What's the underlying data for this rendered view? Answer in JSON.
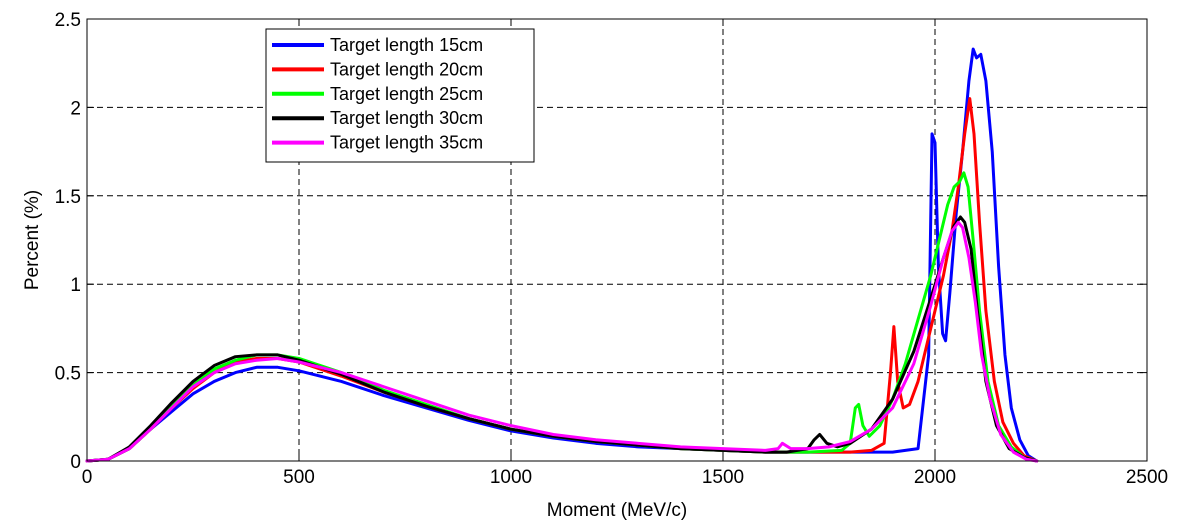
{
  "chart_data": {
    "type": "line",
    "title": "",
    "xlabel": "Moment (MeV/c)",
    "ylabel": "Percent (%)",
    "xlim": [
      0,
      2500
    ],
    "ylim": [
      0,
      2.5
    ],
    "x_ticks": [
      0,
      500,
      1000,
      1500,
      2000,
      2500
    ],
    "y_ticks": [
      0,
      0.5,
      1,
      1.5,
      2,
      2.5
    ],
    "x_tick_labels": [
      "0",
      "500",
      "1000",
      "1500",
      "2000",
      "2500"
    ],
    "y_tick_labels": [
      "0",
      "0.5",
      "1",
      "1.5",
      "2",
      "2.5"
    ],
    "grid": true,
    "legend_position": "top-left",
    "series": [
      {
        "name": "Target length 15cm",
        "color": "#0000ff",
        "points": [
          [
            0,
            0
          ],
          [
            50,
            0.01
          ],
          [
            100,
            0.07
          ],
          [
            150,
            0.18
          ],
          [
            200,
            0.28
          ],
          [
            250,
            0.38
          ],
          [
            300,
            0.45
          ],
          [
            350,
            0.5
          ],
          [
            400,
            0.53
          ],
          [
            450,
            0.53
          ],
          [
            500,
            0.51
          ],
          [
            600,
            0.45
          ],
          [
            700,
            0.37
          ],
          [
            800,
            0.3
          ],
          [
            900,
            0.23
          ],
          [
            1000,
            0.17
          ],
          [
            1100,
            0.13
          ],
          [
            1200,
            0.1
          ],
          [
            1300,
            0.08
          ],
          [
            1400,
            0.07
          ],
          [
            1500,
            0.06
          ],
          [
            1600,
            0.05
          ],
          [
            1700,
            0.05
          ],
          [
            1800,
            0.05
          ],
          [
            1900,
            0.05
          ],
          [
            1960,
            0.07
          ],
          [
            1985,
            0.6
          ],
          [
            1993,
            1.85
          ],
          [
            2000,
            1.8
          ],
          [
            2008,
            1.1
          ],
          [
            2018,
            0.72
          ],
          [
            2025,
            0.68
          ],
          [
            2035,
            0.95
          ],
          [
            2050,
            1.4
          ],
          [
            2065,
            1.75
          ],
          [
            2080,
            2.15
          ],
          [
            2090,
            2.33
          ],
          [
            2098,
            2.28
          ],
          [
            2108,
            2.3
          ],
          [
            2120,
            2.15
          ],
          [
            2135,
            1.75
          ],
          [
            2150,
            1.1
          ],
          [
            2165,
            0.6
          ],
          [
            2180,
            0.3
          ],
          [
            2200,
            0.12
          ],
          [
            2220,
            0.03
          ],
          [
            2240,
            0
          ]
        ]
      },
      {
        "name": "Target length 20cm",
        "color": "#ff0000",
        "points": [
          [
            0,
            0
          ],
          [
            50,
            0.01
          ],
          [
            100,
            0.07
          ],
          [
            150,
            0.18
          ],
          [
            200,
            0.3
          ],
          [
            250,
            0.41
          ],
          [
            300,
            0.5
          ],
          [
            350,
            0.56
          ],
          [
            400,
            0.58
          ],
          [
            450,
            0.58
          ],
          [
            500,
            0.56
          ],
          [
            600,
            0.48
          ],
          [
            700,
            0.39
          ],
          [
            800,
            0.31
          ],
          [
            900,
            0.24
          ],
          [
            1000,
            0.18
          ],
          [
            1100,
            0.14
          ],
          [
            1200,
            0.11
          ],
          [
            1300,
            0.09
          ],
          [
            1400,
            0.07
          ],
          [
            1500,
            0.06
          ],
          [
            1600,
            0.05
          ],
          [
            1700,
            0.05
          ],
          [
            1800,
            0.05
          ],
          [
            1850,
            0.06
          ],
          [
            1880,
            0.1
          ],
          [
            1895,
            0.5
          ],
          [
            1903,
            0.76
          ],
          [
            1912,
            0.45
          ],
          [
            1925,
            0.3
          ],
          [
            1940,
            0.32
          ],
          [
            1960,
            0.45
          ],
          [
            1980,
            0.65
          ],
          [
            2000,
            0.85
          ],
          [
            2020,
            1.05
          ],
          [
            2040,
            1.3
          ],
          [
            2055,
            1.55
          ],
          [
            2070,
            1.85
          ],
          [
            2082,
            2.05
          ],
          [
            2092,
            1.85
          ],
          [
            2105,
            1.35
          ],
          [
            2120,
            0.85
          ],
          [
            2140,
            0.45
          ],
          [
            2160,
            0.22
          ],
          [
            2185,
            0.1
          ],
          [
            2210,
            0.03
          ],
          [
            2240,
            0
          ]
        ]
      },
      {
        "name": "Target length 25cm",
        "color": "#00ff00",
        "points": [
          [
            0,
            0
          ],
          [
            50,
            0.01
          ],
          [
            100,
            0.07
          ],
          [
            150,
            0.18
          ],
          [
            200,
            0.31
          ],
          [
            250,
            0.43
          ],
          [
            300,
            0.52
          ],
          [
            350,
            0.57
          ],
          [
            400,
            0.6
          ],
          [
            450,
            0.6
          ],
          [
            500,
            0.58
          ],
          [
            600,
            0.5
          ],
          [
            700,
            0.4
          ],
          [
            800,
            0.32
          ],
          [
            900,
            0.24
          ],
          [
            1000,
            0.18
          ],
          [
            1100,
            0.14
          ],
          [
            1200,
            0.11
          ],
          [
            1300,
            0.09
          ],
          [
            1400,
            0.07
          ],
          [
            1500,
            0.06
          ],
          [
            1600,
            0.05
          ],
          [
            1700,
            0.05
          ],
          [
            1780,
            0.06
          ],
          [
            1800,
            0.1
          ],
          [
            1812,
            0.3
          ],
          [
            1820,
            0.32
          ],
          [
            1830,
            0.2
          ],
          [
            1845,
            0.14
          ],
          [
            1870,
            0.2
          ],
          [
            1900,
            0.35
          ],
          [
            1930,
            0.55
          ],
          [
            1960,
            0.8
          ],
          [
            1990,
            1.05
          ],
          [
            2010,
            1.25
          ],
          [
            2030,
            1.45
          ],
          [
            2045,
            1.55
          ],
          [
            2058,
            1.58
          ],
          [
            2068,
            1.63
          ],
          [
            2078,
            1.55
          ],
          [
            2090,
            1.25
          ],
          [
            2105,
            0.85
          ],
          [
            2125,
            0.45
          ],
          [
            2150,
            0.2
          ],
          [
            2180,
            0.08
          ],
          [
            2210,
            0.02
          ],
          [
            2240,
            0
          ]
        ]
      },
      {
        "name": "Target length 30cm",
        "color": "#000000",
        "points": [
          [
            0,
            0
          ],
          [
            50,
            0.01
          ],
          [
            100,
            0.08
          ],
          [
            150,
            0.2
          ],
          [
            200,
            0.33
          ],
          [
            250,
            0.45
          ],
          [
            300,
            0.54
          ],
          [
            350,
            0.59
          ],
          [
            400,
            0.6
          ],
          [
            450,
            0.6
          ],
          [
            500,
            0.57
          ],
          [
            600,
            0.49
          ],
          [
            700,
            0.39
          ],
          [
            800,
            0.31
          ],
          [
            900,
            0.24
          ],
          [
            1000,
            0.18
          ],
          [
            1100,
            0.14
          ],
          [
            1200,
            0.11
          ],
          [
            1300,
            0.09
          ],
          [
            1400,
            0.07
          ],
          [
            1500,
            0.06
          ],
          [
            1600,
            0.05
          ],
          [
            1650,
            0.05
          ],
          [
            1700,
            0.07
          ],
          [
            1715,
            0.12
          ],
          [
            1728,
            0.15
          ],
          [
            1745,
            0.1
          ],
          [
            1770,
            0.08
          ],
          [
            1800,
            0.1
          ],
          [
            1850,
            0.18
          ],
          [
            1900,
            0.35
          ],
          [
            1950,
            0.62
          ],
          [
            1990,
            0.92
          ],
          [
            2020,
            1.15
          ],
          [
            2045,
            1.33
          ],
          [
            2060,
            1.38
          ],
          [
            2070,
            1.35
          ],
          [
            2085,
            1.2
          ],
          [
            2100,
            0.85
          ],
          [
            2120,
            0.45
          ],
          [
            2145,
            0.2
          ],
          [
            2175,
            0.07
          ],
          [
            2210,
            0.02
          ],
          [
            2240,
            0
          ]
        ]
      },
      {
        "name": "Target length 35cm",
        "color": "#ff00ff",
        "points": [
          [
            0,
            0
          ],
          [
            50,
            0.01
          ],
          [
            100,
            0.07
          ],
          [
            150,
            0.18
          ],
          [
            200,
            0.3
          ],
          [
            250,
            0.42
          ],
          [
            300,
            0.5
          ],
          [
            350,
            0.55
          ],
          [
            400,
            0.57
          ],
          [
            450,
            0.58
          ],
          [
            500,
            0.56
          ],
          [
            600,
            0.5
          ],
          [
            700,
            0.42
          ],
          [
            800,
            0.34
          ],
          [
            900,
            0.26
          ],
          [
            1000,
            0.2
          ],
          [
            1100,
            0.15
          ],
          [
            1200,
            0.12
          ],
          [
            1300,
            0.1
          ],
          [
            1400,
            0.08
          ],
          [
            1500,
            0.07
          ],
          [
            1600,
            0.06
          ],
          [
            1630,
            0.07
          ],
          [
            1640,
            0.1
          ],
          [
            1660,
            0.07
          ],
          [
            1700,
            0.07
          ],
          [
            1750,
            0.08
          ],
          [
            1800,
            0.11
          ],
          [
            1850,
            0.18
          ],
          [
            1900,
            0.3
          ],
          [
            1950,
            0.55
          ],
          [
            1990,
            0.88
          ],
          [
            2020,
            1.15
          ],
          [
            2040,
            1.3
          ],
          [
            2055,
            1.35
          ],
          [
            2065,
            1.32
          ],
          [
            2080,
            1.15
          ],
          [
            2095,
            0.9
          ],
          [
            2110,
            0.6
          ],
          [
            2130,
            0.35
          ],
          [
            2155,
            0.15
          ],
          [
            2185,
            0.05
          ],
          [
            2215,
            0.01
          ],
          [
            2240,
            0
          ]
        ]
      }
    ]
  }
}
